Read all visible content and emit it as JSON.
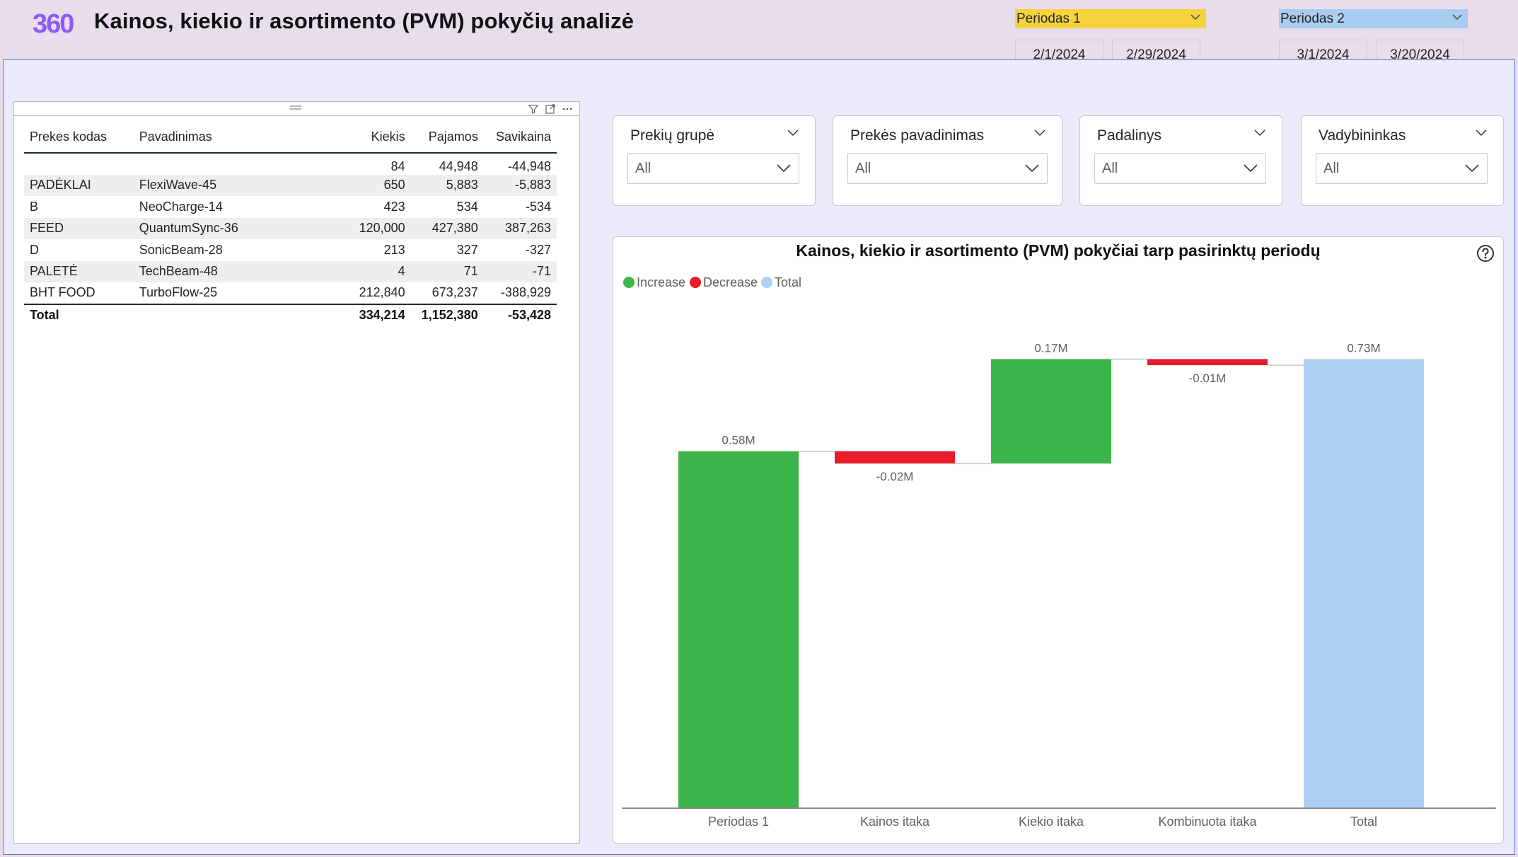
{
  "header": {
    "logo_text": "360",
    "title": "Kainos, kiekio ir asortimento (PVM) pokyčių analizė",
    "period1": {
      "label": "Periodas 1",
      "color": "#f5d33d",
      "start": "2/1/2024",
      "end": "2/29/2024"
    },
    "period2": {
      "label": "Periodas 2",
      "color": "#a9ccf0",
      "start": "3/1/2024",
      "end": "3/20/2024"
    }
  },
  "table": {
    "columns": [
      "Prekes kodas",
      "Pavadinimas",
      "Kiekis",
      "Pajamos",
      "Savikaina"
    ],
    "rows": [
      [
        "",
        "",
        "84",
        "44,948",
        "-44,948"
      ],
      [
        "PADĖKLAI",
        "FlexiWave-45",
        "650",
        "5,883",
        "-5,883"
      ],
      [
        "B",
        "NeoCharge-14",
        "423",
        "534",
        "-534"
      ],
      [
        "FEED",
        "QuantumSync-36",
        "120,000",
        "427,380",
        "387,263"
      ],
      [
        "D",
        "SonicBeam-28",
        "213",
        "327",
        "-327"
      ],
      [
        "PALETĖ",
        "TechBeam-48",
        "4",
        "71",
        "-71"
      ],
      [
        "BHT FOOD",
        "TurboFlow-25",
        "212,840",
        "673,237",
        "-388,929"
      ]
    ],
    "total": [
      "Total",
      "",
      "334,214",
      "1,152,380",
      "-53,428"
    ]
  },
  "slicers": [
    {
      "title": "Prekių grupė",
      "value": "All"
    },
    {
      "title": "Prekės pavadinimas",
      "value": "All"
    },
    {
      "title": "Padalinys",
      "value": "All"
    },
    {
      "title": "Vadybininkas",
      "value": "All"
    }
  ],
  "chart_data": {
    "type": "bar",
    "subtype": "waterfall",
    "title": "Kainos, kiekio ir asortimento (PVM) pokyčiai tarp pasirinktų periodų",
    "legend": [
      {
        "name": "Increase",
        "color": "#3cb64a"
      },
      {
        "name": "Decrease",
        "color": "#e81c2b"
      },
      {
        "name": "Total",
        "color": "#acd1f3"
      }
    ],
    "legend_position": "top-left",
    "categories": [
      "Periodas 1",
      "Kainos itaka",
      "Kiekio itaka",
      "Kombinuota itaka",
      "Total"
    ],
    "values": [
      0.58,
      -0.02,
      0.17,
      -0.01,
      0.73
    ],
    "kinds": [
      "Increase",
      "Decrease",
      "Increase",
      "Decrease",
      "Total"
    ],
    "labels": [
      "0.58M",
      "-0.02M",
      "0.17M",
      "-0.01M",
      "0.73M"
    ],
    "unit": "M",
    "ylim": [
      0,
      0.75
    ],
    "grid": false
  },
  "icons": {
    "filter": "filter-icon",
    "focus": "focus-mode-icon",
    "more": "more-options-icon",
    "help": "help-icon"
  }
}
